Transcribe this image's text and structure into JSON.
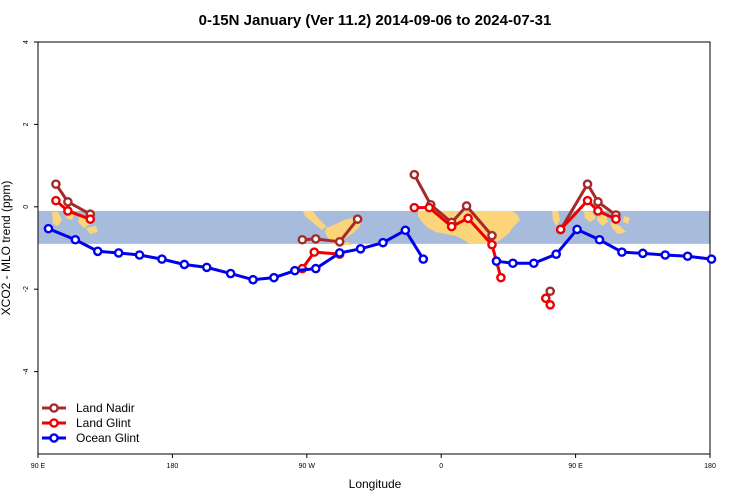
{
  "chart_data": {
    "type": "line",
    "title": "0-15N January (Ver 11.2)   2014-09-06 to 2024-07-31",
    "xlabel": "Longitude",
    "ylabel": "XCO2 - MLO trend (ppm)",
    "xlim": [
      90,
      540
    ],
    "ylim": [
      -6,
      4
    ],
    "x_ticks": [
      {
        "value": 90,
        "label": "90 E"
      },
      {
        "value": 180,
        "label": "180"
      },
      {
        "value": 270,
        "label": "90 W"
      },
      {
        "value": 360,
        "label": "0"
      },
      {
        "value": 450,
        "label": "90 E"
      },
      {
        "value": 540,
        "label": "180"
      }
    ],
    "y_ticks": [
      -4,
      -2,
      0,
      2,
      4
    ],
    "band": {
      "y_min": -0.9,
      "y_max": -0.1,
      "color": "#a7bcdc"
    },
    "land_color": "#fcd57a",
    "legend_position": "bottom-left",
    "series": [
      {
        "name": "Land Nadir",
        "color": "#a52a2a",
        "segments": [
          {
            "x": [
              102,
              110,
              125
            ],
            "y": [
              0.55,
              0.12,
              -0.18
            ]
          },
          {
            "x": [
              267,
              276,
              292,
              304
            ],
            "y": [
              -0.8,
              -0.78,
              -0.85,
              -0.3
            ]
          },
          {
            "x": [
              342,
              353,
              367,
              377,
              394
            ],
            "y": [
              0.78,
              0.05,
              -0.38,
              0.02,
              -0.7
            ]
          },
          {
            "x": [
              433
            ],
            "y": [
              -2.05
            ]
          },
          {
            "x": [
              440,
              458,
              465,
              477
            ],
            "y": [
              -0.55,
              0.55,
              0.12,
              -0.2
            ]
          }
        ]
      },
      {
        "name": "Land Glint",
        "color": "#ee0000",
        "segments": [
          {
            "x": [
              102,
              110,
              125
            ],
            "y": [
              0.15,
              -0.1,
              -0.3
            ]
          },
          {
            "x": [
              267,
              275,
              292
            ],
            "y": [
              -1.5,
              -1.1,
              -1.15
            ]
          },
          {
            "x": [
              342,
              352,
              367,
              378,
              394,
              400
            ],
            "y": [
              -0.02,
              -0.02,
              -0.48,
              -0.28,
              -0.92,
              -1.72
            ]
          },
          {
            "x": [
              430,
              433
            ],
            "y": [
              -2.22,
              -2.38
            ]
          },
          {
            "x": [
              440,
              458,
              465,
              477
            ],
            "y": [
              -0.55,
              0.15,
              -0.1,
              -0.3
            ]
          }
        ]
      },
      {
        "name": "Ocean Glint",
        "color": "#0000ee",
        "segments": [
          {
            "x": [
              97,
              115,
              130,
              144,
              158,
              173,
              188,
              203,
              219,
              234,
              248,
              262,
              276,
              292,
              306,
              321,
              336,
              348
            ],
            "y": [
              -0.53,
              -0.8,
              -1.08,
              -1.12,
              -1.17,
              -1.27,
              -1.4,
              -1.47,
              -1.62,
              -1.77,
              -1.72,
              -1.55,
              -1.5,
              -1.12,
              -1.02,
              -0.87,
              -0.57,
              -1.27
            ]
          },
          {
            "x": [
              397,
              408,
              422,
              437,
              451,
              466,
              481,
              495,
              510,
              525,
              541
            ],
            "y": [
              -1.32,
              -1.37,
              -1.37,
              -1.15,
              -0.55,
              -0.8,
              -1.1,
              -1.13,
              -1.17,
              -1.2,
              -1.27
            ]
          }
        ]
      }
    ]
  }
}
